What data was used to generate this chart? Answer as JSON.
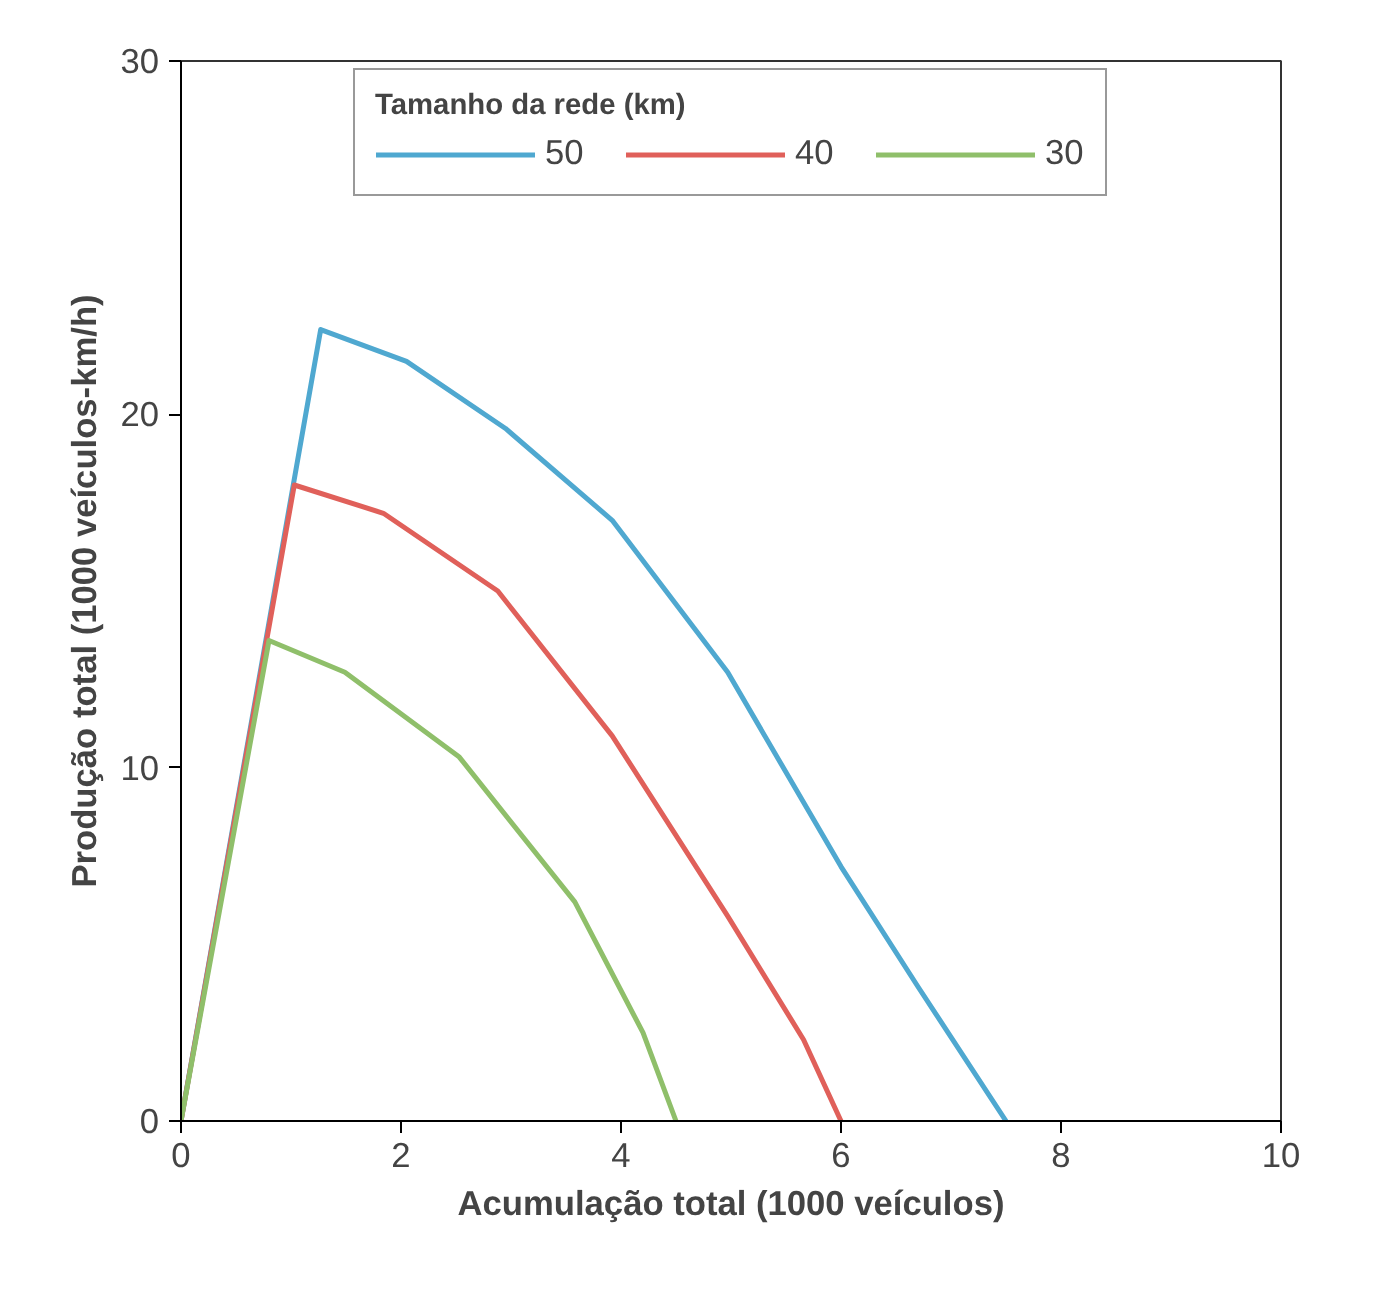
{
  "chart_data": {
    "type": "line",
    "xlabel": "Acumulação total (1000 veículos)",
    "ylabel": "Produção total (1000 veículos-km/h)",
    "legend_title": "Tamanho da rede (km)",
    "legend": "top",
    "grid": false,
    "line_style": "solid",
    "marker": "none",
    "xlim": [
      0,
      10
    ],
    "ylim": [
      0,
      30
    ],
    "xticks": [
      0,
      2,
      4,
      6,
      8,
      10
    ],
    "yticks": [
      0,
      10,
      20,
      30
    ],
    "series": [
      {
        "name": "50",
        "color": "#4fa8d0",
        "x": [
          0,
          1.27,
          2.05,
          2.95,
          3.92,
          4.97,
          6.0,
          6.7,
          7.5
        ],
        "values": [
          0,
          22.4,
          21.5,
          19.6,
          17.0,
          12.7,
          7.2,
          3.8,
          0
        ]
      },
      {
        "name": "40",
        "color": "#e0605a",
        "x": [
          0,
          1.03,
          1.84,
          2.88,
          3.92,
          4.97,
          5.66,
          6.0
        ],
        "values": [
          0,
          18.0,
          17.2,
          15.0,
          10.9,
          5.8,
          2.3,
          0
        ]
      },
      {
        "name": "30",
        "color": "#8fbf6a",
        "x": [
          0,
          0.8,
          1.49,
          2.53,
          3.58,
          4.2,
          4.5
        ],
        "values": [
          0,
          13.6,
          12.7,
          10.3,
          6.2,
          2.5,
          0
        ]
      }
    ]
  }
}
